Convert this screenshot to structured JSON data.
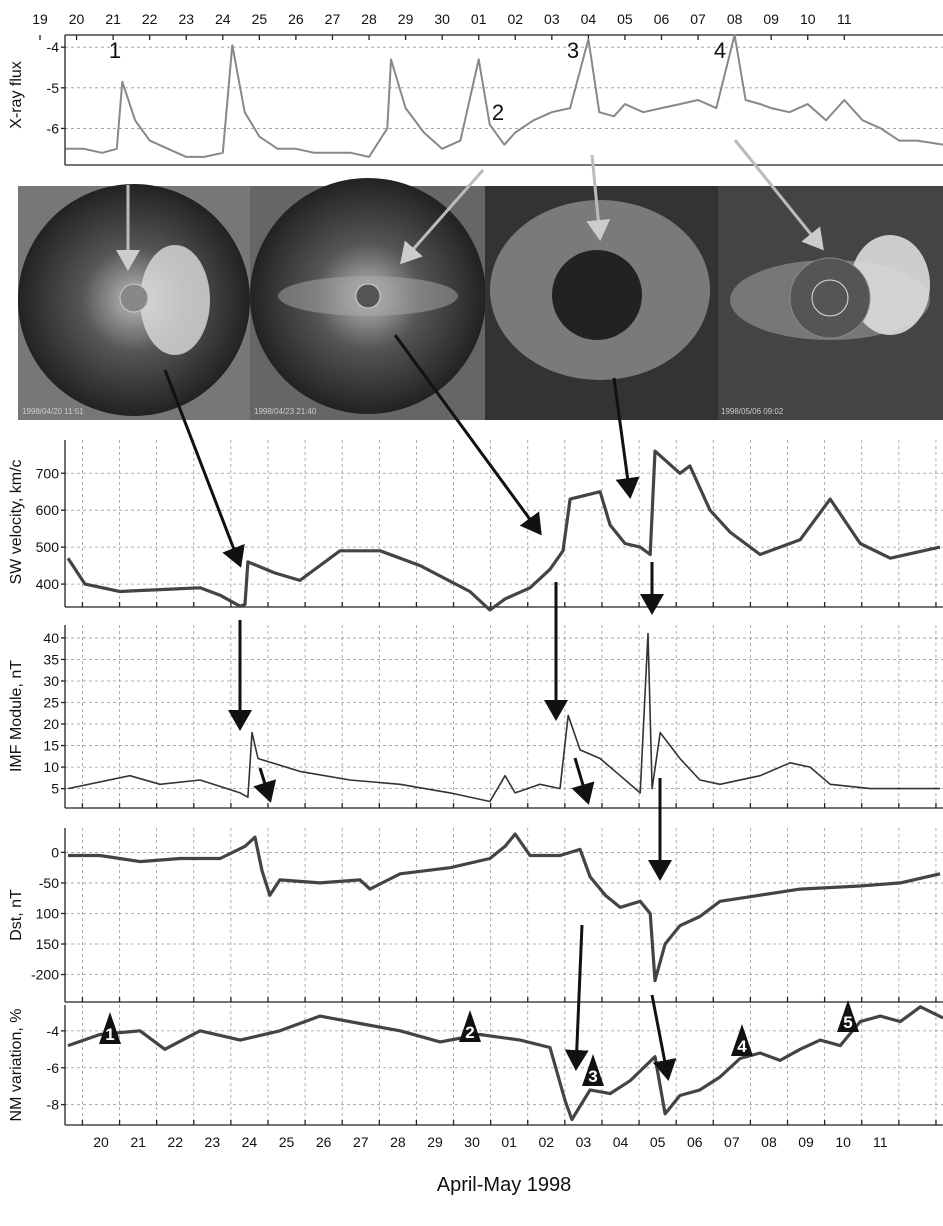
{
  "images": [
    "1998/04/20 11:51",
    "1998/04/23 21:40",
    "1998/05/06 09:02"
  ],
  "chart_data": [
    {
      "type": "line",
      "ylabel": "X-ray flux",
      "x": [
        0.7,
        1.2,
        1.7,
        2.1,
        2.25,
        2.6,
        3.0,
        3.5,
        4.0,
        4.5,
        5.0,
        5.26,
        5.6,
        6.0,
        6.5,
        7.0,
        7.5,
        8.0,
        8.5,
        9.0,
        9.5,
        9.6,
        10.0,
        10.5,
        11.0,
        11.5,
        12.0,
        12.3,
        12.7,
        13.0,
        13.5,
        14.0,
        14.5,
        15.0,
        15.3,
        15.7,
        16.0,
        16.5,
        17.0,
        17.5,
        18.0,
        18.5,
        19.0,
        19.3,
        19.7,
        20.0,
        20.5,
        21.0,
        21.5,
        22.0,
        22.5,
        23.0,
        23.5,
        24.0,
        24.7
      ],
      "series": [
        {
          "color": "#888888",
          "values": [
            -6.5,
            -6.5,
            -6.6,
            -6.5,
            -4.85,
            -5.8,
            -6.3,
            -6.5,
            -6.7,
            -6.7,
            -6.6,
            -3.95,
            -5.6,
            -6.2,
            -6.5,
            -6.5,
            -6.6,
            -6.6,
            -6.6,
            -6.7,
            -6.0,
            -4.3,
            -5.5,
            -6.1,
            -6.5,
            -6.3,
            -4.3,
            -5.9,
            -6.4,
            -6.1,
            -5.8,
            -5.6,
            -5.5,
            -3.8,
            -5.6,
            -5.7,
            -5.4,
            -5.6,
            -5.5,
            -5.4,
            -5.3,
            -5.5,
            -3.7,
            -5.3,
            -5.4,
            -5.5,
            -5.6,
            -5.4,
            -5.8,
            -5.3,
            -5.8,
            -6.0,
            -6.3,
            -6.3,
            -6.4
          ]
        }
      ],
      "xlim": [
        0,
        24.7
      ],
      "ylim": [
        -6.9,
        -3.7
      ],
      "yticks": [
        -4,
        -5,
        -6
      ],
      "grid": true,
      "xticks": [
        {
          "value": 0,
          "label": "19"
        },
        {
          "value": 1,
          "label": "20"
        },
        {
          "value": 2,
          "label": "21"
        },
        {
          "value": 3,
          "label": "22"
        },
        {
          "value": 4,
          "label": "23"
        },
        {
          "value": 5,
          "label": "24"
        },
        {
          "value": 6,
          "label": "25"
        },
        {
          "value": 7,
          "label": "26"
        },
        {
          "value": 8,
          "label": "27"
        },
        {
          "value": 9,
          "label": "28"
        },
        {
          "value": 10,
          "label": "29"
        },
        {
          "value": 11,
          "label": "30"
        },
        {
          "value": 12,
          "label": "01"
        },
        {
          "value": 13,
          "label": "02"
        },
        {
          "value": 14,
          "label": "03"
        },
        {
          "value": 15,
          "label": "04"
        },
        {
          "value": 16,
          "label": "05"
        },
        {
          "value": 17,
          "label": "06"
        },
        {
          "value": 18,
          "label": "07"
        },
        {
          "value": 19,
          "label": "08"
        },
        {
          "value": 20,
          "label": "09"
        },
        {
          "value": 21,
          "label": "10"
        },
        {
          "value": 22,
          "label": "11"
        }
      ],
      "annotations": [
        "1",
        "2",
        "3",
        "4"
      ]
    },
    {
      "type": "line",
      "ylabel": "SW velocity, km/c",
      "x": [
        0.61,
        1.07,
        2.01,
        3.09,
        4.17,
        4.71,
        5.25,
        5.38,
        5.46,
        6.19,
        6.86,
        7.94,
        9.02,
        10.1,
        11.44,
        11.98,
        12.39,
        13.06,
        13.6,
        13.95,
        14.14,
        14.95,
        15.22,
        15.62,
        16.03,
        16.3,
        16.43,
        17.1,
        17.37,
        17.91,
        18.46,
        19.26,
        20.34,
        21.15,
        21.96,
        22.77,
        24.11
      ],
      "series": [
        {
          "color": "#444444",
          "values": [
            470,
            400,
            380,
            385,
            390,
            370,
            340,
            345,
            460,
            430,
            410,
            490,
            490,
            450,
            380,
            330,
            360,
            390,
            440,
            490,
            630,
            650,
            560,
            510,
            500,
            480,
            760,
            700,
            720,
            600,
            540,
            480,
            520,
            630,
            510,
            470,
            500
          ]
        }
      ],
      "xlim": [
        0.53,
        24.19
      ],
      "ylim": [
        338,
        790
      ],
      "yticks": [
        400,
        500,
        600,
        700
      ],
      "grid": true,
      "xgrid": [
        1,
        2,
        3,
        4,
        5,
        6,
        7,
        8,
        9,
        10,
        11,
        12,
        13,
        14,
        15,
        16,
        17,
        18,
        19,
        20,
        21,
        22,
        23,
        24
      ]
    },
    {
      "type": "line",
      "ylabel": "IMF Module, nT",
      "x": [
        0.61,
        2.28,
        3.09,
        4.17,
        5.25,
        5.46,
        5.57,
        5.73,
        6.86,
        8.21,
        9.56,
        10.91,
        11.98,
        12.39,
        12.66,
        13.33,
        13.87,
        14.09,
        14.41,
        14.95,
        15.49,
        16.03,
        16.24,
        16.35,
        16.57,
        17.1,
        17.64,
        18.18,
        19.26,
        20.07,
        20.61,
        21.15,
        22.23,
        24.11
      ],
      "series": [
        {
          "color": "#333333",
          "values": [
            5,
            8,
            6,
            7,
            4,
            3,
            18,
            12,
            9,
            7,
            6,
            4,
            2,
            8,
            4,
            6,
            5,
            22,
            14,
            12,
            8,
            4,
            41,
            5,
            18,
            12,
            7,
            6,
            8,
            11,
            10,
            6,
            5,
            5
          ]
        }
      ],
      "xlim": [
        0.53,
        24.19
      ],
      "ylim": [
        0.5,
        43
      ],
      "yticks": [
        5,
        10,
        15,
        20,
        25,
        30,
        35,
        40
      ],
      "grid": true,
      "xgrid": [
        1,
        2,
        3,
        4,
        5,
        6,
        7,
        8,
        9,
        10,
        11,
        12,
        13,
        14,
        15,
        16,
        17,
        18,
        19,
        20,
        21,
        22,
        23,
        24
      ]
    },
    {
      "type": "line",
      "ylabel": "Dst, nT",
      "x": [
        0.61,
        1.47,
        2.55,
        3.63,
        4.71,
        5.38,
        5.65,
        5.84,
        6.05,
        6.32,
        7.4,
        8.48,
        8.75,
        9.56,
        10.91,
        11.98,
        12.39,
        12.66,
        13.06,
        13.87,
        14.41,
        14.68,
        15.09,
        15.49,
        16.03,
        16.3,
        16.43,
        16.7,
        17.1,
        17.64,
        18.18,
        19.26,
        20.34,
        21.96,
        23.04,
        24.11
      ],
      "series": [
        {
          "color": "#444444",
          "values": [
            -5,
            -5,
            -15,
            -10,
            -10,
            10,
            25,
            -30,
            -70,
            -45,
            -50,
            -45,
            -60,
            -35,
            -25,
            -10,
            10,
            30,
            -5,
            -5,
            5,
            -40,
            -70,
            -90,
            -80,
            -100,
            -210,
            -150,
            -120,
            -105,
            -80,
            -70,
            -60,
            -55,
            -50,
            -35
          ]
        }
      ],
      "xlim": [
        0.53,
        24.19
      ],
      "ylim": [
        -245,
        40
      ],
      "yticks": [
        0,
        -50,
        {
          "value": -100,
          "label": "100"
        },
        {
          "value": -150,
          "label": "150"
        },
        -200
      ],
      "grid": true,
      "xgrid": [
        1,
        2,
        3,
        4,
        5,
        6,
        7,
        8,
        9,
        10,
        11,
        12,
        13,
        14,
        15,
        16,
        17,
        18,
        19,
        20,
        21,
        22,
        23,
        24
      ]
    },
    {
      "type": "line",
      "ylabel": "NM variation, %",
      "xlabel": "April-May 1998",
      "x": [
        0.61,
        1.47,
        2.55,
        3.22,
        4.17,
        5.25,
        6.32,
        7.4,
        8.48,
        9.56,
        10.64,
        11.71,
        12.79,
        13.6,
        14.01,
        14.19,
        14.68,
        15.22,
        15.76,
        16.43,
        16.7,
        17.1,
        17.64,
        18.18,
        18.72,
        19.26,
        19.8,
        20.34,
        20.88,
        21.42,
        21.96,
        22.5,
        23.04,
        23.58,
        24.19
      ],
      "series": [
        {
          "color": "#444444",
          "values": [
            -4.8,
            -4.2,
            -4.0,
            -5.0,
            -4.0,
            -4.5,
            -4.0,
            -3.2,
            -3.6,
            -4.0,
            -4.6,
            -4.2,
            -4.5,
            -4.9,
            -7.8,
            -8.8,
            -7.2,
            -7.4,
            -6.7,
            -5.4,
            -8.5,
            -7.5,
            -7.2,
            -6.5,
            -5.5,
            -5.2,
            -5.6,
            -5.0,
            -4.5,
            -4.8,
            -3.5,
            -3.2,
            -3.5,
            -2.7,
            -3.3
          ]
        }
      ],
      "xlim": [
        0.53,
        24.19
      ],
      "ylim": [
        -9.1,
        -2.6
      ],
      "yticks": [
        -4,
        -6,
        -8
      ],
      "grid": true,
      "xgrid": [
        1,
        2,
        3,
        4,
        5,
        6,
        7,
        8,
        9,
        10,
        11,
        12,
        13,
        14,
        15,
        16,
        17,
        18,
        19,
        20,
        21,
        22,
        23,
        24
      ],
      "xticks": [
        {
          "value": 1.5,
          "label": "20"
        },
        {
          "value": 2.5,
          "label": "21"
        },
        {
          "value": 3.5,
          "label": "22"
        },
        {
          "value": 4.5,
          "label": "23"
        },
        {
          "value": 5.5,
          "label": "24"
        },
        {
          "value": 6.5,
          "label": "25"
        },
        {
          "value": 7.5,
          "label": "26"
        },
        {
          "value": 8.5,
          "label": "27"
        },
        {
          "value": 9.5,
          "label": "28"
        },
        {
          "value": 10.5,
          "label": "29"
        },
        {
          "value": 11.5,
          "label": "30"
        },
        {
          "value": 12.5,
          "label": "01"
        },
        {
          "value": 13.5,
          "label": "02"
        },
        {
          "value": 14.5,
          "label": "03"
        },
        {
          "value": 15.5,
          "label": "04"
        },
        {
          "value": 16.5,
          "label": "05"
        },
        {
          "value": 17.5,
          "label": "06"
        },
        {
          "value": 18.5,
          "label": "07"
        },
        {
          "value": 19.5,
          "label": "08"
        },
        {
          "value": 20.5,
          "label": "09"
        },
        {
          "value": 21.5,
          "label": "10"
        },
        {
          "value": 22.5,
          "label": "11"
        }
      ],
      "annotations": [
        "1",
        "2",
        "3",
        "4",
        "5"
      ]
    }
  ]
}
